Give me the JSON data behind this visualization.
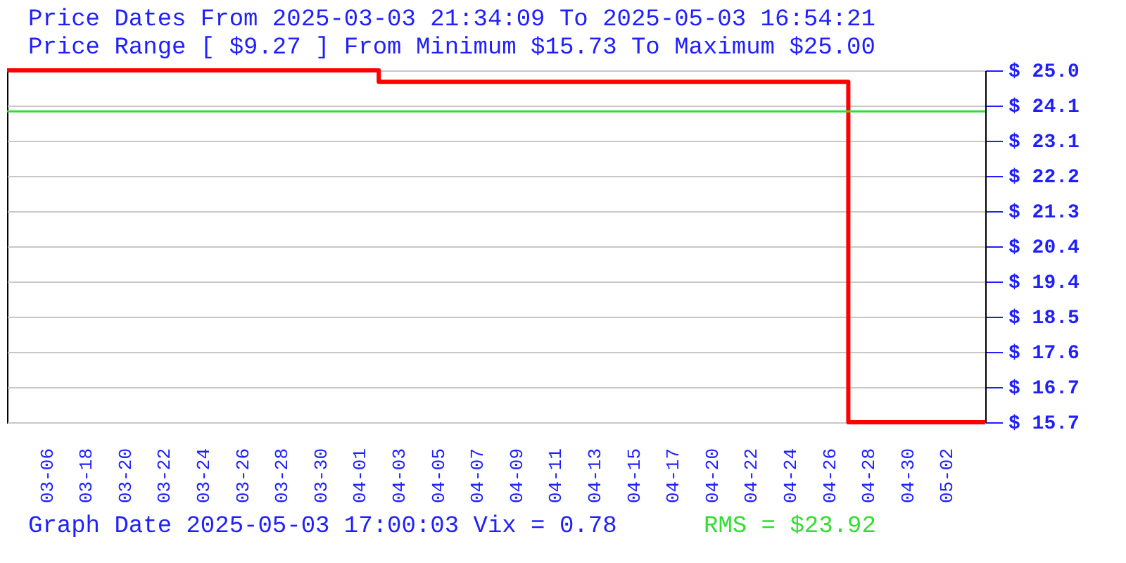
{
  "chart_data": {
    "type": "step",
    "title": "Price Dates From 2025-03-03 21:34:09 To 2025-05-03 16:54:21",
    "subtitle": "Price Range [ $9.27 ] From Minimum $15.73 To Maximum $25.00",
    "categories": [
      null,
      "03-06",
      "03-18",
      "03-20",
      "03-22",
      "03-24",
      "03-26",
      "03-28",
      "03-30",
      "04-01",
      "04-03",
      "04-05",
      "04-07",
      "04-09",
      "04-11",
      "04-13",
      "04-15",
      "04-17",
      "04-20",
      "04-22",
      "04-24",
      "04-26",
      "04-28",
      "04-30",
      "05-02",
      null
    ],
    "series": [
      {
        "color": "#ff0000",
        "values": [
          25.0,
          25.0,
          25.0,
          25.0,
          25.0,
          25.0,
          25.0,
          25.0,
          25.0,
          25.0,
          24.7,
          24.7,
          24.7,
          24.7,
          24.7,
          24.7,
          24.7,
          24.7,
          24.7,
          24.7,
          24.7,
          24.7,
          15.73,
          15.73,
          15.73,
          15.73
        ]
      }
    ],
    "ylim": [
      15.73,
      25.0
    ],
    "yticks": [
      {
        "value": 15.73,
        "label": "$ 15.7"
      },
      {
        "value": 16.66,
        "label": "$ 16.7"
      },
      {
        "value": 17.58,
        "label": "$ 17.6"
      },
      {
        "value": 18.51,
        "label": "$ 18.5"
      },
      {
        "value": 19.44,
        "label": "$ 19.4"
      },
      {
        "value": 20.37,
        "label": "$ 20.4"
      },
      {
        "value": 21.29,
        "label": "$ 21.3"
      },
      {
        "value": 22.22,
        "label": "$ 22.2"
      },
      {
        "value": 23.15,
        "label": "$ 23.1"
      },
      {
        "value": 24.07,
        "label": "$ 24.1"
      },
      {
        "value": 25.0,
        "label": "$ 25.0"
      }
    ],
    "grid": "y",
    "ref_lines": [
      {
        "axis": "y",
        "value": 23.92,
        "label": "RMS = $23.92",
        "color": "#33dd33"
      }
    ],
    "annotations": [
      "Graph Date 2025-05-03 17:00:03 Vix = 0.78"
    ]
  }
}
